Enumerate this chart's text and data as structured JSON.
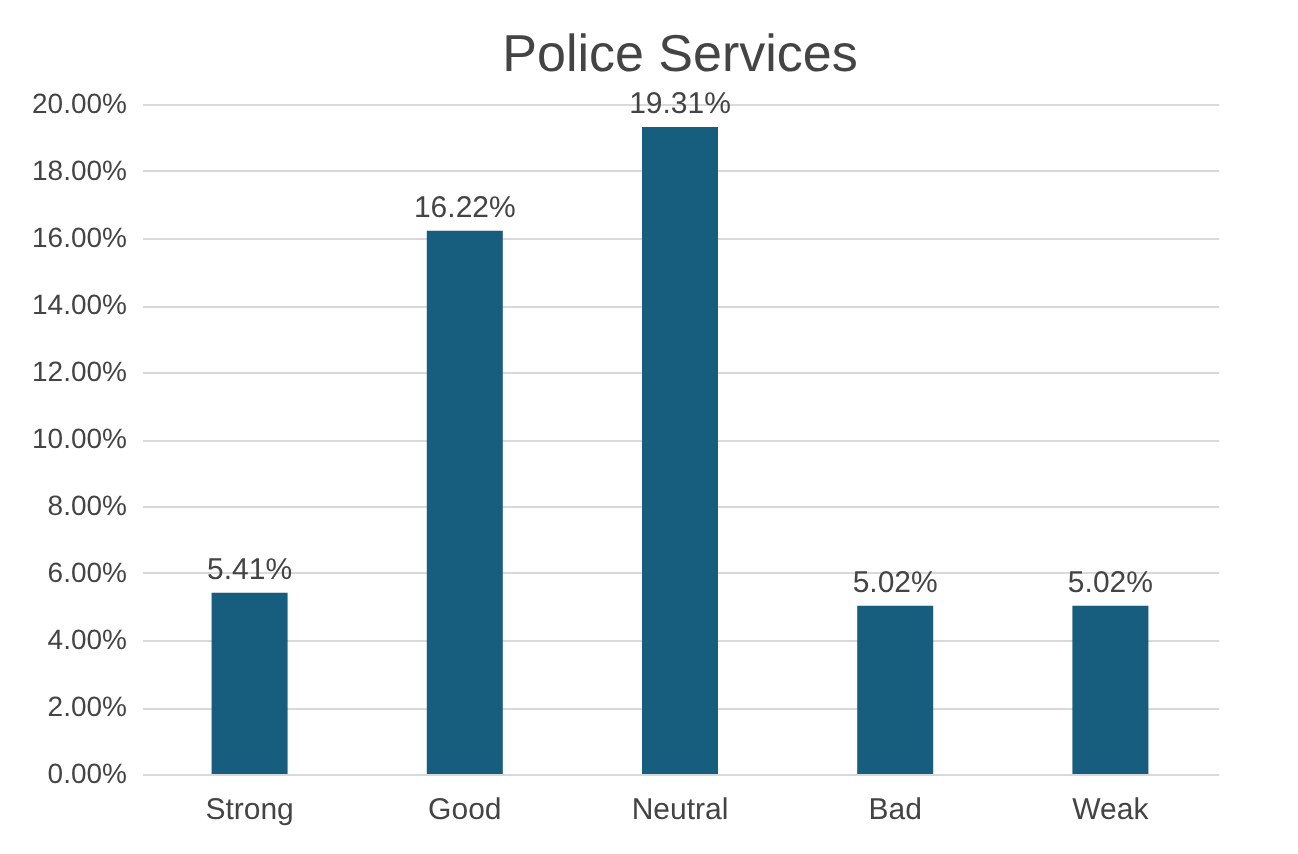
{
  "chart_data": {
    "type": "bar",
    "title": "Police Services",
    "categories": [
      "Strong",
      "Good",
      "Neutral",
      "Bad",
      "Weak"
    ],
    "values": [
      5.41,
      16.22,
      19.31,
      5.02,
      5.02
    ],
    "value_labels": [
      "5.41%",
      "16.22%",
      "19.31%",
      "5.02%",
      "5.02%"
    ],
    "color": "#175e7e",
    "ylim": [
      0,
      20
    ],
    "yticks": [
      {
        "value": 0,
        "label": "0.00%"
      },
      {
        "value": 2,
        "label": "2.00%"
      },
      {
        "value": 4,
        "label": "4.00%"
      },
      {
        "value": 6,
        "label": "6.00%"
      },
      {
        "value": 8,
        "label": "8.00%"
      },
      {
        "value": 10,
        "label": "10.00%"
      },
      {
        "value": 12,
        "label": "12.00%"
      },
      {
        "value": 14,
        "label": "14.00%"
      },
      {
        "value": 16,
        "label": "16.00%"
      },
      {
        "value": 18,
        "label": "18.00%"
      },
      {
        "value": 20,
        "label": "20.00%"
      }
    ],
    "grid": "y"
  }
}
